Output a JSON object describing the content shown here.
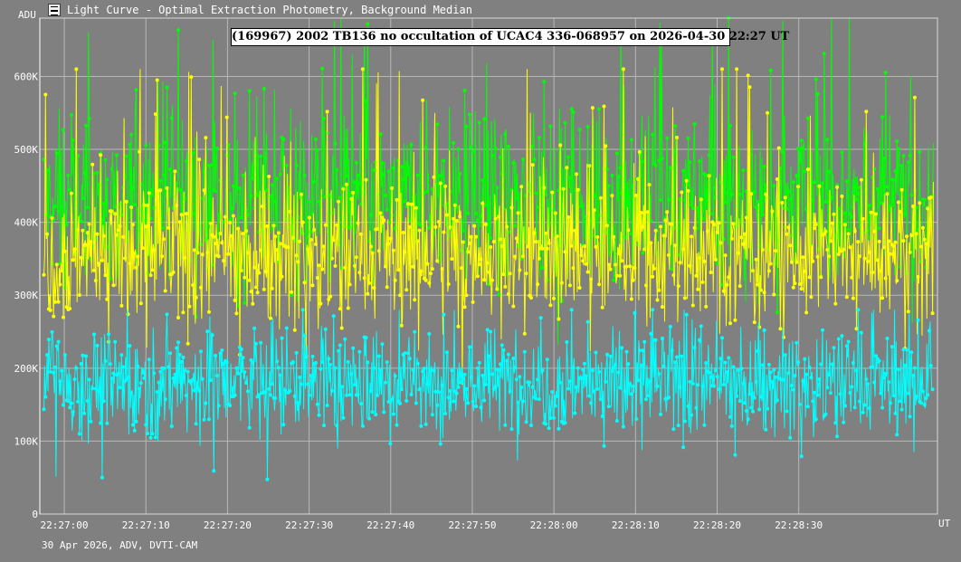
{
  "window": {
    "title": "Light Curve - Optimal Extraction Photometry, Background Median",
    "icon": "light-curve-app-icon"
  },
  "footer": {
    "info": "30 Apr 2026, ADV, DVTI-CAM"
  },
  "chart_data": {
    "type": "line",
    "title": "(169967) 2002 TB136 no occultation of UCAC4 336-068957 on 2026-04-30  22:27 UT",
    "ylabel": "ADU",
    "xlabel": "UT",
    "ylim": [
      0,
      680000
    ],
    "y_ticks": [
      0,
      100000,
      200000,
      300000,
      400000,
      500000,
      600000
    ],
    "y_tick_labels": [
      "0",
      "100K",
      "200K",
      "300K",
      "400K",
      "500K",
      "600K"
    ],
    "x_tick_labels": [
      "22:27:00",
      "22:27:10",
      "22:27:20",
      "22:27:30",
      "22:27:40",
      "22:27:50",
      "22:28:00",
      "22:28:10",
      "22:28:20",
      "22:28:30"
    ],
    "x_tick_seconds": [
      0,
      10,
      20,
      30,
      40,
      50,
      60,
      70,
      80,
      90
    ],
    "xlim_seconds": [
      -3,
      107
    ],
    "grid": true,
    "background": "#808080",
    "series": [
      {
        "color": "#00ff00",
        "mean": 430000,
        "spread": 55000,
        "spikes_to": 680000,
        "points": 1100
      },
      {
        "color": "#ffff00",
        "mean": 360000,
        "spread": 50000,
        "spikes_to": 610000,
        "points": 1100
      },
      {
        "color": "#00ffff",
        "mean": 180000,
        "spread": 35000,
        "spikes_to": 280000,
        "points": 1100
      }
    ]
  }
}
